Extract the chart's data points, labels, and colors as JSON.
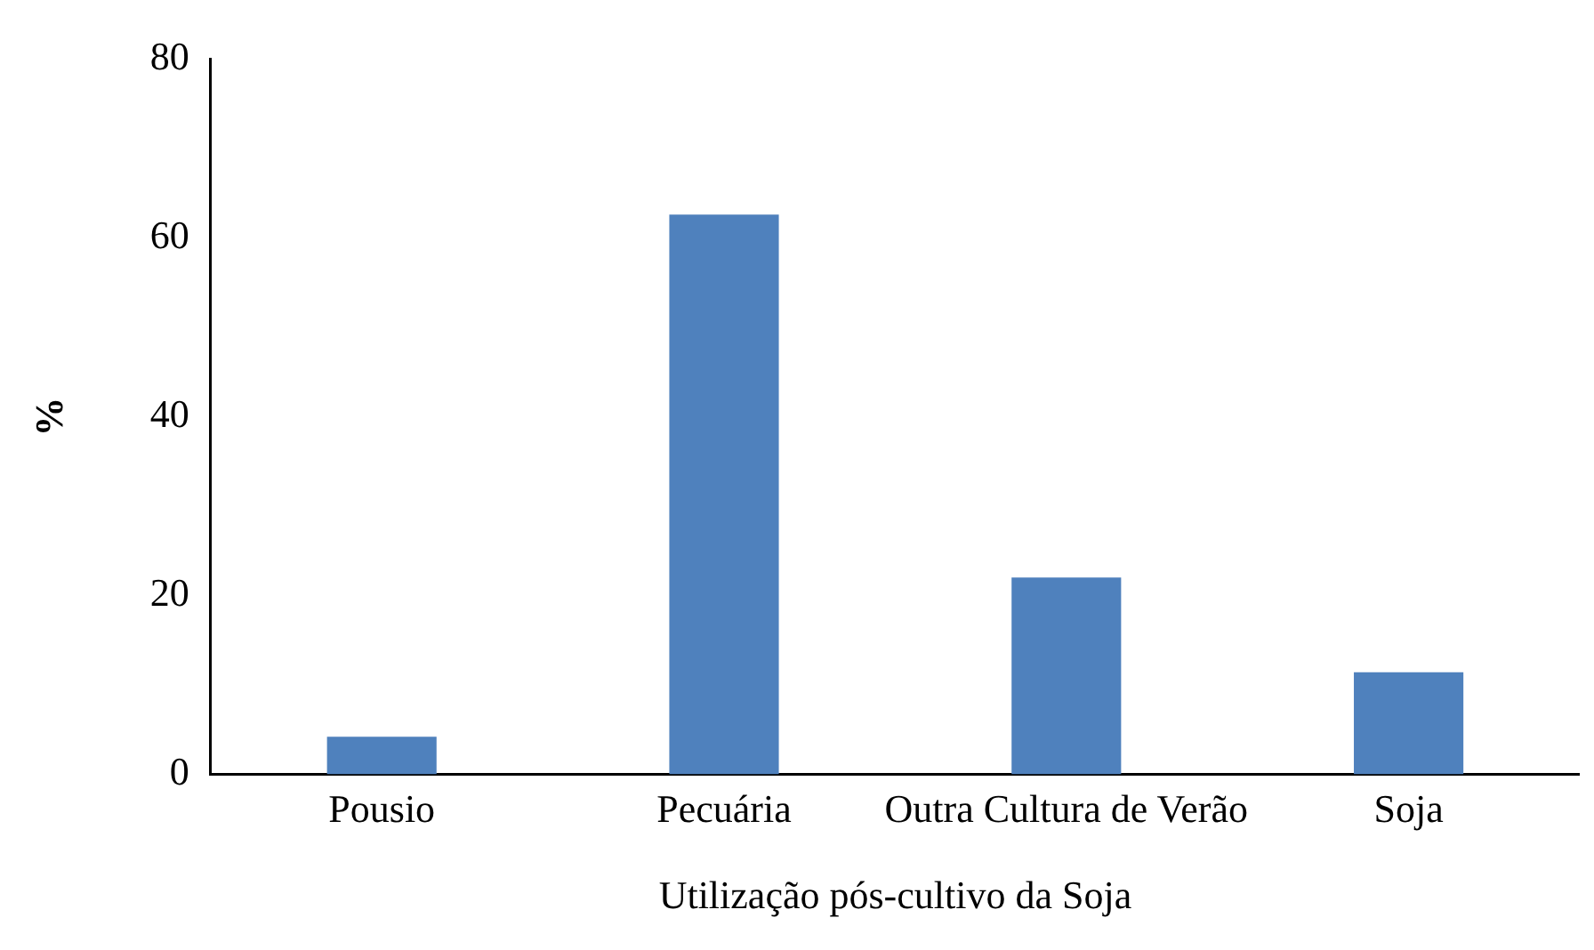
{
  "chart_data": {
    "type": "bar",
    "xlabel": "Utilização pós-cultivo da Soja",
    "ylabel": "%",
    "categories": [
      "Pousio",
      "Pecuária",
      "Outra Cultura de Verão",
      "Soja"
    ],
    "values": [
      4.2,
      62.6,
      22.0,
      11.4
    ],
    "color": "#4f81bd",
    "ylim": [
      0,
      80
    ],
    "yticks": [
      0,
      20,
      40,
      60,
      80
    ],
    "grid": false,
    "legend": false
  }
}
